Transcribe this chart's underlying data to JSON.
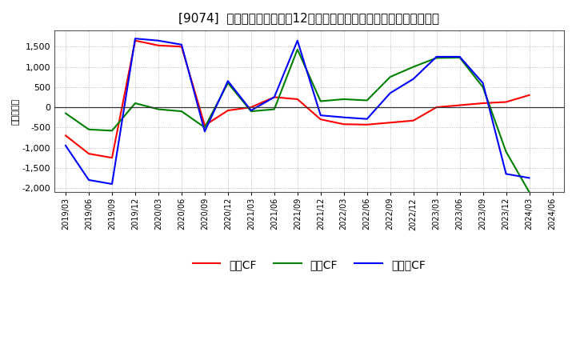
{
  "title": "[9074]  キャッシュフローの12か月移動合計の対前年同期増減額の推移",
  "ylabel": "（百万円）",
  "background_color": "#ffffff",
  "plot_bg_color": "#ffffff",
  "grid_color": "#aaaaaa",
  "x_labels": [
    "2019/03",
    "2019/06",
    "2019/09",
    "2019/12",
    "2020/03",
    "2020/06",
    "2020/09",
    "2020/12",
    "2021/03",
    "2021/06",
    "2021/09",
    "2021/12",
    "2022/03",
    "2022/06",
    "2022/09",
    "2022/12",
    "2023/03",
    "2023/06",
    "2023/09",
    "2023/12",
    "2024/03",
    "2024/06"
  ],
  "operating_cf": [
    -700,
    -1150,
    -1250,
    1650,
    1530,
    1500,
    -450,
    -80,
    0,
    250,
    200,
    -300,
    -420,
    -430,
    -380,
    -330,
    0,
    50,
    100,
    130,
    300,
    null
  ],
  "investing_cf": [
    -150,
    -550,
    -580,
    100,
    -50,
    -100,
    -500,
    600,
    -100,
    -50,
    1430,
    150,
    200,
    170,
    750,
    1000,
    1220,
    1230,
    500,
    -1100,
    -2100,
    null
  ],
  "free_cf": [
    -950,
    -1800,
    -1900,
    1700,
    1650,
    1550,
    -600,
    650,
    -80,
    250,
    1650,
    -200,
    -250,
    -290,
    350,
    700,
    1250,
    1250,
    600,
    -1650,
    -1750,
    null
  ],
  "colors": {
    "operating": "#ff0000",
    "investing": "#008000",
    "free": "#0000ff"
  },
  "legend_labels": {
    "operating": "営業CF",
    "investing": "投資CF",
    "free": "フリーCF"
  },
  "ylim": [
    -2100,
    1900
  ],
  "yticks": [
    -2000,
    -1500,
    -1000,
    -500,
    0,
    500,
    1000,
    1500
  ],
  "title_fontsize": 11,
  "axis_fontsize": 8
}
